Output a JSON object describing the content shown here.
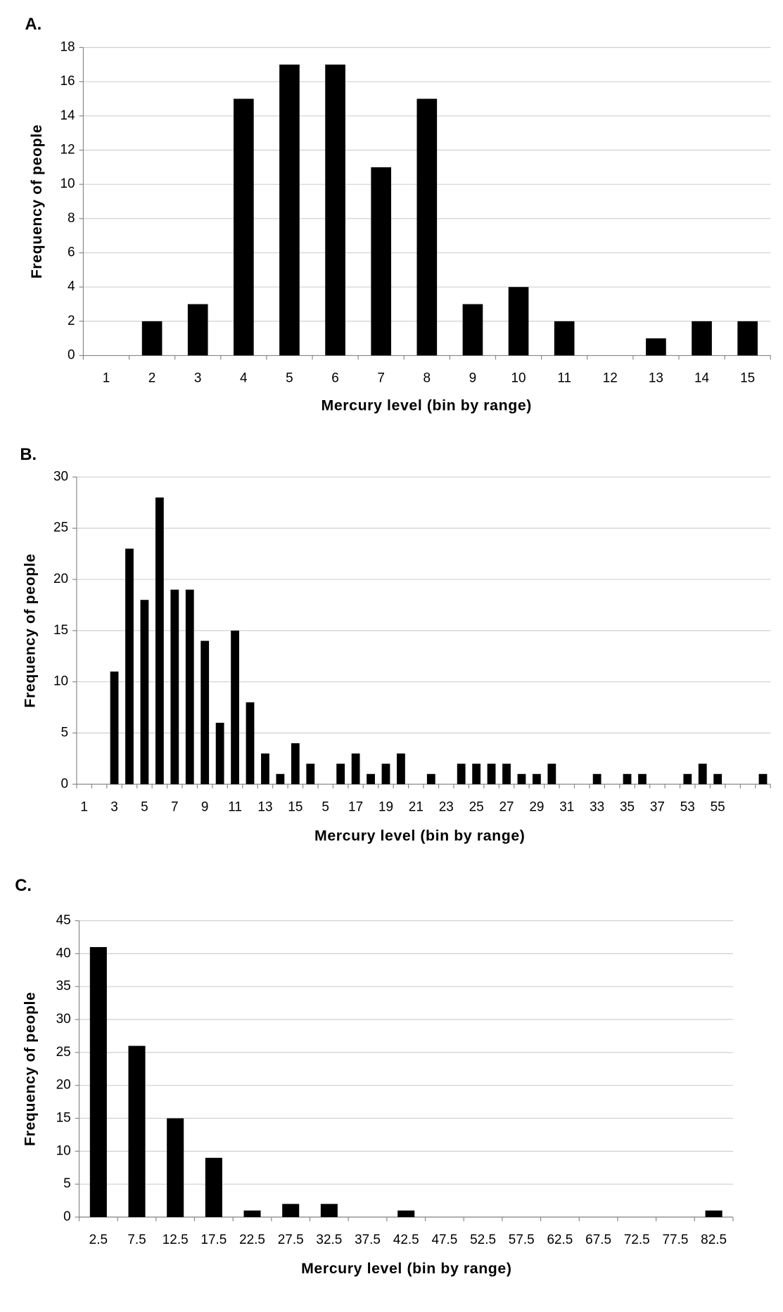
{
  "chart_data": [
    {
      "type": "bar",
      "title": "A.",
      "x_label": "Mercury level (bin by range)",
      "y_label": "Frequency of people",
      "categories": [
        "1",
        "2",
        "3",
        "4",
        "5",
        "6",
        "7",
        "8",
        "9",
        "10",
        "11",
        "12",
        "13",
        "14",
        "15"
      ],
      "values": [
        0,
        2,
        3,
        15,
        17,
        17,
        11,
        15,
        3,
        4,
        2,
        0,
        1,
        2,
        2
      ],
      "color": "#000000",
      "ylim": [
        0,
        18
      ],
      "yticks": [
        0,
        2,
        4,
        6,
        8,
        10,
        12,
        14,
        16,
        18
      ],
      "grid": true
    },
    {
      "type": "bar",
      "title": "B.",
      "x_label": "Mercury level (bin by range)",
      "y_label": "Frequency of people",
      "categories": [
        "1",
        null,
        "3",
        null,
        "5",
        null,
        "7",
        null,
        "9",
        null,
        "11",
        null,
        "13",
        null,
        "15",
        null,
        "5",
        null,
        "17",
        null,
        "19",
        null,
        "21",
        null,
        "23",
        null,
        "25",
        null,
        "27",
        null,
        "29",
        null,
        "31",
        null,
        "33",
        null,
        "35",
        null,
        "37",
        null,
        "53",
        null,
        "55",
        null,
        null,
        null
      ],
      "values": [
        0,
        0,
        11,
        23,
        18,
        28,
        19,
        19,
        14,
        6,
        15,
        8,
        3,
        1,
        4,
        2,
        0,
        2,
        3,
        1,
        2,
        3,
        0,
        1,
        0,
        2,
        2,
        2,
        2,
        1,
        1,
        2,
        0,
        0,
        1,
        0,
        1,
        1,
        0,
        0,
        1,
        2,
        1,
        0,
        0,
        1
      ],
      "color": "#000000",
      "ylim": [
        0,
        30
      ],
      "yticks": [
        0,
        5,
        10,
        15,
        20,
        25,
        30
      ],
      "grid": true
    },
    {
      "type": "bar",
      "title": "C.",
      "x_label": "Mercury level (bin by range)",
      "y_label": "Frequency of people",
      "categories": [
        "2.5",
        "7.5",
        "12.5",
        "17.5",
        "22.5",
        "27.5",
        "32.5",
        "37.5",
        "42.5",
        "47.5",
        "52.5",
        "57.5",
        "62.5",
        "67.5",
        "72.5",
        "77.5",
        "82.5"
      ],
      "values": [
        41,
        26,
        15,
        9,
        1,
        2,
        2,
        0,
        1,
        0,
        0,
        0,
        0,
        0,
        0,
        0,
        1
      ],
      "color": "#000000",
      "ylim": [
        0,
        45
      ],
      "yticks": [
        0,
        5,
        10,
        15,
        20,
        25,
        30,
        35,
        40,
        45
      ],
      "grid": true
    }
  ]
}
